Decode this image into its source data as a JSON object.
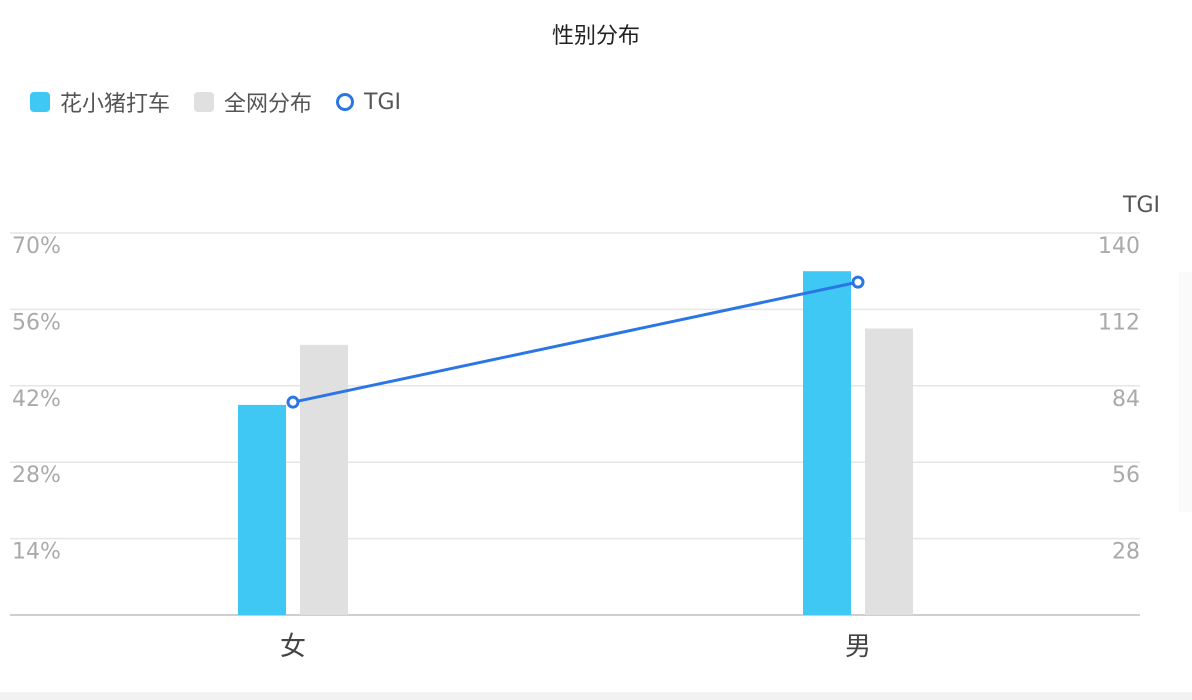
{
  "chart_data": {
    "type": "bar",
    "title": "性别分布",
    "categories": [
      "女",
      "男"
    ],
    "series": [
      {
        "name": "花小猪打车",
        "type": "bar",
        "axis": "left",
        "color": "#40c8f4",
        "values": [
          38.5,
          63
        ]
      },
      {
        "name": "全网分布",
        "type": "bar",
        "axis": "left",
        "color": "#e0e0e0",
        "values": [
          49.5,
          52.5
        ]
      },
      {
        "name": "TGI",
        "type": "line",
        "axis": "right",
        "color": "#2b76e5",
        "values": [
          78,
          122
        ]
      }
    ],
    "y_left": {
      "ticks": [
        "14%",
        "28%",
        "42%",
        "56%",
        "70%"
      ],
      "range": [
        0,
        70
      ]
    },
    "y_right": {
      "label": "TGI",
      "ticks": [
        "28",
        "56",
        "84",
        "112",
        "140"
      ],
      "range": [
        0,
        140
      ]
    },
    "grid": true,
    "legend_position": "top-left"
  }
}
